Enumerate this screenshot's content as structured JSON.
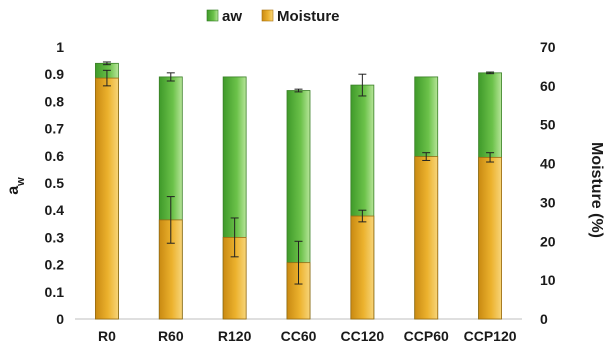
{
  "chart_data": {
    "type": "bar",
    "stacked_overlay": true,
    "categories": [
      "R0",
      "R60",
      "R120",
      "CC60",
      "CC120",
      "CCP60",
      "CCP120"
    ],
    "series": [
      {
        "name": "aw",
        "axis": "left",
        "color": "#5bb33a",
        "values": [
          0.94,
          0.89,
          0.89,
          0.84,
          0.86,
          0.89,
          0.905
        ],
        "errors": [
          0.005,
          0.015,
          0.0,
          0.005,
          0.04,
          0.0,
          0.003
        ]
      },
      {
        "name": "Moisture",
        "axis": "right",
        "color": "#e3a51f",
        "values": [
          62.0,
          25.5,
          21.0,
          14.5,
          26.5,
          41.8,
          41.6
        ],
        "errors": [
          2.0,
          6.0,
          5.0,
          5.5,
          1.5,
          1.0,
          1.2
        ]
      }
    ],
    "ylabel": "aw",
    "ylabel_right": "Moisture (%)",
    "ylim": [
      0,
      1
    ],
    "yticks": [
      "0",
      "0.1",
      "0.2",
      "0.3",
      "0.4",
      "0.5",
      "0.6",
      "0.7",
      "0.8",
      "0.9",
      "1"
    ],
    "ylim_right": [
      0,
      70
    ],
    "yticks_right": [
      "0",
      "10",
      "20",
      "30",
      "40",
      "50",
      "60",
      "70"
    ],
    "grid": false,
    "legend": {
      "placement": "top-center",
      "items": [
        {
          "label": "aw",
          "color": "#5bb33a"
        },
        {
          "label": "Moisture",
          "color": "#e3a51f"
        }
      ]
    }
  }
}
